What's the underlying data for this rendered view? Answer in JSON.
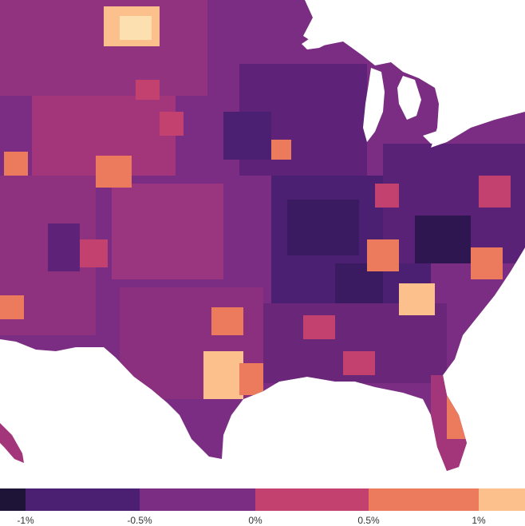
{
  "map": {
    "region": "contiguous United States",
    "unit": "county",
    "palette": "magma",
    "background": "#ffffff",
    "water_color": "#ffffff"
  },
  "legend": {
    "colors": [
      "#1d1438",
      "#4b1f72",
      "#7a2d82",
      "#c2416e",
      "#ec7b5e",
      "#fcc08c"
    ],
    "tick_labels": [
      "-1%",
      "-0.5%",
      "0%",
      "0.5%",
      "1%"
    ]
  }
}
